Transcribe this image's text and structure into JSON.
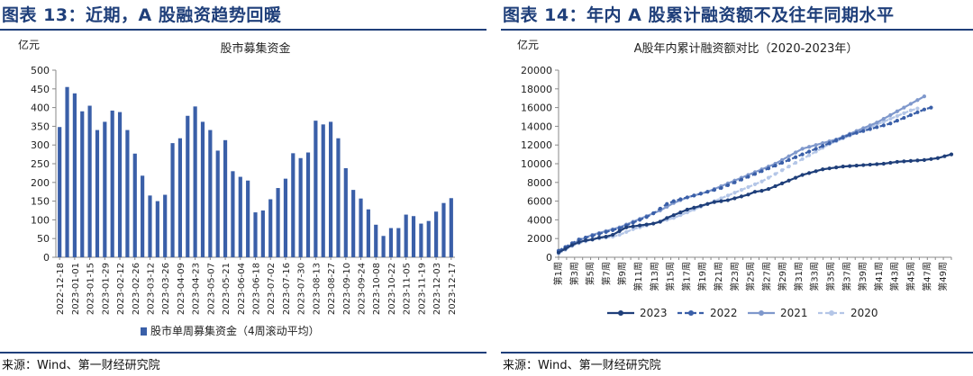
{
  "panels": [
    {
      "figure_title": "图表 13：近期，A 股融资趋势回暖",
      "source": "来源：Wind、第一财经研究院"
    },
    {
      "figure_title": "图表 14：年内 A 股累计融资额不及往年同期水平",
      "source": "来源：Wind、第一财经研究院"
    }
  ],
  "chart_data": [
    {
      "type": "bar",
      "title": "股市募集资金",
      "ylabel": "亿元",
      "xlabel": "",
      "ylim": [
        0,
        500
      ],
      "yticks": [
        0,
        50,
        100,
        150,
        200,
        250,
        300,
        350,
        400,
        450,
        500
      ],
      "grid": false,
      "legend": "bottom",
      "bar_color": "#3a5fa8",
      "tick_labels": [
        "2022-12-18",
        "2023-01-01",
        "2023-01-15",
        "2023-01-29",
        "2023-02-12",
        "2023-02-26",
        "2023-03-12",
        "2023-03-26",
        "2023-04-09",
        "2023-04-23",
        "2023-05-07",
        "2023-05-21",
        "2023-06-04",
        "2023-06-18",
        "2023-07-02",
        "2023-07-16",
        "2023-07-30",
        "2023-08-13",
        "2023-08-27",
        "2023-09-10",
        "2023-09-24",
        "2023-10-08",
        "2023-10-22",
        "2023-11-05",
        "2023-11-19",
        "2023-12-03",
        "2023-12-17"
      ],
      "series": [
        {
          "name": "股市单周募集资金（4周滚动平均）",
          "values": [
            348,
            455,
            438,
            390,
            405,
            340,
            362,
            392,
            388,
            340,
            277,
            218,
            165,
            150,
            167,
            305,
            318,
            378,
            403,
            362,
            340,
            285,
            313,
            230,
            215,
            205,
            120,
            125,
            155,
            185,
            210,
            278,
            265,
            280,
            365,
            355,
            362,
            318,
            238,
            180,
            157,
            128,
            87,
            57,
            78,
            78,
            114,
            110,
            90,
            97,
            122,
            145,
            158
          ]
        }
      ]
    },
    {
      "type": "line",
      "title": "A股年内累计融资额对比（2020-2023年）",
      "ylabel": "亿元",
      "xlabel": "",
      "ylim": [
        0,
        20000
      ],
      "yticks": [
        0,
        2000,
        4000,
        6000,
        8000,
        10000,
        12000,
        14000,
        16000,
        18000,
        20000
      ],
      "grid": false,
      "legend": "bottom",
      "x_tick_labels": [
        "第1周",
        "第3周",
        "第5周",
        "第7周",
        "第9周",
        "第11周",
        "第13周",
        "第15周",
        "第17周",
        "第19周",
        "第21周",
        "第23周",
        "第25周",
        "第27周",
        "第29周",
        "第31周",
        "第33周",
        "第35周",
        "第37周",
        "第39周",
        "第41周",
        "第43周",
        "第45周",
        "第47周",
        "第49周"
      ],
      "series": [
        {
          "name": "2023",
          "color": "#1f3f7a",
          "style": "solid",
          "values": [
            500,
            900,
            1300,
            1600,
            1800,
            1900,
            2100,
            2200,
            2400,
            2800,
            3200,
            3300,
            3400,
            3500,
            3600,
            3800,
            4200,
            4500,
            4800,
            5100,
            5300,
            5500,
            5700,
            5900,
            6000,
            6100,
            6300,
            6500,
            6700,
            7000,
            7100,
            7300,
            7600,
            7900,
            8200,
            8500,
            8800,
            9000,
            9200,
            9400,
            9500,
            9600,
            9700,
            9750,
            9800,
            9850,
            9900,
            9950,
            10000,
            10100,
            10200,
            10250,
            10300,
            10350,
            10400,
            10500,
            10600,
            10800,
            11000
          ]
        },
        {
          "name": "2022",
          "color": "#3a5fa8",
          "style": "dashed",
          "values": [
            700,
            1100,
            1500,
            1900,
            2100,
            2300,
            2500,
            2700,
            2900,
            3100,
            3400,
            3700,
            4000,
            4300,
            4700,
            5200,
            5700,
            6000,
            6200,
            6400,
            6600,
            6800,
            7000,
            7200,
            7400,
            7700,
            8000,
            8300,
            8600,
            8900,
            9200,
            9500,
            9800,
            10100,
            10400,
            10700,
            11000,
            11300,
            11600,
            11900,
            12200,
            12500,
            12800,
            13100,
            13300,
            13500,
            13700,
            13900,
            14100,
            14300,
            14600,
            14900,
            15200,
            15500,
            15800,
            16000
          ]
        },
        {
          "name": "2021",
          "color": "#7f98cc",
          "style": "solid",
          "values": [
            600,
            1000,
            1400,
            1800,
            2100,
            2400,
            2600,
            2800,
            3000,
            3200,
            3500,
            3800,
            4100,
            4400,
            4700,
            5000,
            5400,
            5800,
            6100,
            6400,
            6600,
            6800,
            7000,
            7300,
            7600,
            7900,
            8200,
            8500,
            8800,
            9100,
            9400,
            9700,
            10000,
            10400,
            10800,
            11200,
            11600,
            11800,
            12000,
            12200,
            12400,
            12600,
            12900,
            13200,
            13500,
            13800,
            14100,
            14400,
            14800,
            15200,
            15600,
            16000,
            16400,
            16800,
            17200
          ]
        },
        {
          "name": "2020",
          "color": "#b4c6e7",
          "style": "dashed",
          "values": [
            400,
            800,
            1200,
            1500,
            1700,
            1900,
            2000,
            2100,
            2200,
            2400,
            2700,
            3000,
            3200,
            3400,
            3600,
            3800,
            4000,
            4200,
            4500,
            4800,
            5100,
            5400,
            5700,
            6000,
            6300,
            6600,
            6900,
            7200,
            7500,
            7800,
            8100,
            8500,
            8900,
            9300,
            9700,
            10100,
            10500,
            10900,
            11300,
            11700,
            12100,
            12400,
            12700,
            13000,
            13300,
            13600,
            13900,
            14200,
            14500,
            14800,
            15100,
            15400,
            15700,
            15900
          ]
        }
      ]
    }
  ]
}
